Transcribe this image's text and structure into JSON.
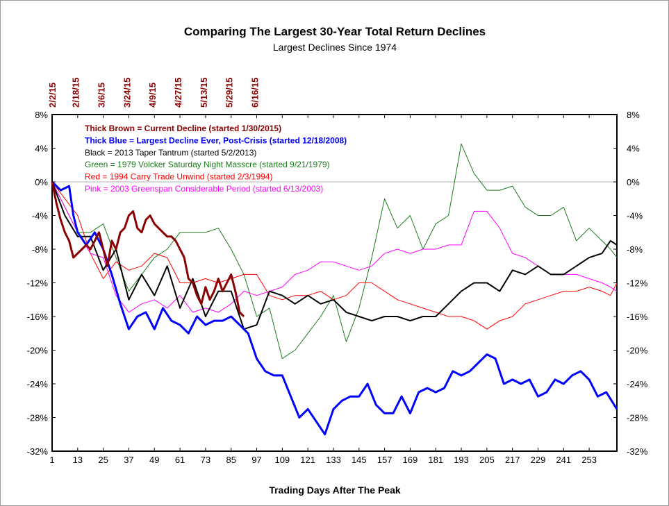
{
  "chart_data": {
    "type": "line",
    "title": "Comparing The Largest 30-Year Total Return Declines",
    "subtitle": "Largest Declines Since 1974",
    "xlabel": "Trading Days After The Peak",
    "xlim": [
      1,
      266
    ],
    "ylim": [
      -32,
      8
    ],
    "x_ticks": [
      1,
      13,
      25,
      37,
      49,
      61,
      73,
      85,
      97,
      109,
      121,
      133,
      145,
      157,
      169,
      181,
      193,
      205,
      217,
      229,
      241,
      253
    ],
    "y_ticks": [
      8,
      4,
      0,
      -4,
      -8,
      -12,
      -16,
      -20,
      -24,
      -28,
      -32
    ],
    "y_tick_labels": [
      "8%",
      "4%",
      "0%",
      "-4%",
      "-8%",
      "-12%",
      "-16%",
      "-20%",
      "-24%",
      "-28%",
      "-32%"
    ],
    "top_date_ticks": [
      {
        "label": "2/2/15",
        "x": 1
      },
      {
        "label": "2/18/15",
        "x": 12
      },
      {
        "label": "3/6/15",
        "x": 24
      },
      {
        "label": "3/24/15",
        "x": 36
      },
      {
        "label": "4/9/15",
        "x": 48
      },
      {
        "label": "4/27/15",
        "x": 60
      },
      {
        "label": "5/13/15",
        "x": 72
      },
      {
        "label": "5/29/15",
        "x": 84
      },
      {
        "label": "6/16/15",
        "x": 96
      }
    ],
    "grid": false,
    "zero_line": true,
    "legend_position": "top-left",
    "series": [
      {
        "name": "Thick Brown = Current Decline (started 1/30/2015)",
        "color": "#8b0000",
        "bold": true,
        "width": 3,
        "x": [
          1,
          3,
          5,
          7,
          9,
          11,
          13,
          15,
          17,
          19,
          21,
          23,
          25,
          27,
          29,
          31,
          33,
          35,
          37,
          39,
          41,
          43,
          45,
          47,
          49,
          51,
          53,
          55,
          57,
          59,
          61,
          63,
          65,
          67,
          69,
          71,
          73,
          75,
          77,
          79,
          81,
          83,
          85,
          87,
          89,
          91
        ],
        "y": [
          0,
          -2.5,
          -4.5,
          -6,
          -7,
          -9,
          -8.5,
          -8,
          -7.5,
          -8,
          -7,
          -6,
          -8,
          -10,
          -7,
          -8,
          -6,
          -5.5,
          -4,
          -3.5,
          -5.5,
          -6,
          -4.5,
          -4,
          -5,
          -5.5,
          -6,
          -6.5,
          -6.5,
          -7,
          -8,
          -9,
          -11.5,
          -12,
          -13.5,
          -14.5,
          -12.5,
          -14,
          -13,
          -11.5,
          -13,
          -12,
          -11,
          -13,
          -15.5,
          -16
        ]
      },
      {
        "name": "Thick Blue = Largest Decline Ever, Post-Crisis (started 12/18/2008)",
        "color": "#0000ff",
        "bold": true,
        "width": 3,
        "x": [
          1,
          5,
          9,
          11,
          13,
          17,
          21,
          25,
          29,
          33,
          37,
          41,
          45,
          49,
          53,
          57,
          61,
          65,
          69,
          73,
          77,
          81,
          85,
          89,
          93,
          97,
          101,
          105,
          109,
          113,
          117,
          121,
          125,
          129,
          133,
          137,
          141,
          145,
          149,
          153,
          157,
          161,
          165,
          169,
          173,
          177,
          181,
          185,
          189,
          193,
          197,
          201,
          205,
          209,
          213,
          217,
          221,
          225,
          229,
          233,
          237,
          241,
          245,
          249,
          253,
          257,
          261,
          266
        ],
        "y": [
          0,
          -1,
          -0.5,
          -4,
          -6,
          -7.5,
          -6,
          -8,
          -11,
          -14.5,
          -17.5,
          -16,
          -15.5,
          -17.5,
          -15,
          -16.5,
          -17,
          -18,
          -16,
          -17,
          -16.5,
          -16.5,
          -16,
          -17,
          -18,
          -21,
          -22.5,
          -23,
          -23,
          -25.5,
          -28,
          -27,
          -28.5,
          -30,
          -27,
          -26,
          -25.5,
          -25.5,
          -24,
          -26.5,
          -27.5,
          -27.5,
          -25.5,
          -27.5,
          -25,
          -24.5,
          -25,
          -24.5,
          -22.5,
          -23,
          -22.5,
          -21.5,
          -20.5,
          -21,
          -24,
          -23.5,
          -24,
          -23.5,
          -25.5,
          -25,
          -23.5,
          -24,
          -23,
          -22.5,
          -23.5,
          -25.5,
          -25,
          -27
        ]
      },
      {
        "name": "Black = 2013 Taper Tantrum (started 5/2/2013)",
        "color": "#000000",
        "bold": false,
        "width": 2,
        "x": [
          1,
          7,
          13,
          19,
          25,
          31,
          37,
          43,
          49,
          55,
          61,
          67,
          73,
          79,
          85,
          91,
          97,
          103,
          109,
          115,
          121,
          127,
          133,
          139,
          145,
          151,
          157,
          163,
          169,
          175,
          181,
          187,
          193,
          199,
          205,
          211,
          217,
          223,
          229,
          235,
          241,
          247,
          253,
          259,
          263,
          266
        ],
        "y": [
          0,
          -4,
          -6.5,
          -6.5,
          -10.5,
          -8,
          -14,
          -11,
          -13.5,
          -10,
          -15,
          -11.5,
          -16,
          -13,
          -13,
          -17.5,
          -17,
          -13,
          -13.5,
          -14.5,
          -13.5,
          -14.5,
          -14,
          -15.5,
          -16,
          -16.5,
          -16,
          -16,
          -16.5,
          -16,
          -16,
          -14.5,
          -13,
          -12,
          -12,
          -13,
          -10.5,
          -11,
          -10,
          -11,
          -11,
          -10,
          -9,
          -8.5,
          -7,
          -7.5
        ]
      },
      {
        "name": "Green = 1979 Volcker Saturday Night Masscre (started 9/21/1979)",
        "color": "#1a7a1a",
        "bold": false,
        "width": 1,
        "x": [
          1,
          7,
          13,
          19,
          25,
          31,
          37,
          43,
          49,
          55,
          61,
          67,
          73,
          79,
          85,
          91,
          97,
          103,
          109,
          115,
          121,
          127,
          133,
          139,
          145,
          151,
          157,
          163,
          169,
          175,
          181,
          187,
          193,
          199,
          205,
          211,
          217,
          223,
          229,
          235,
          241,
          247,
          253,
          259,
          263,
          266
        ],
        "y": [
          0,
          -3,
          -6,
          -6,
          -5,
          -9,
          -13,
          -11,
          -9,
          -8,
          -6,
          -6,
          -6,
          -5.5,
          -8,
          -11,
          -16,
          -15,
          -21,
          -20,
          -18,
          -16,
          -13.5,
          -19,
          -15,
          -9,
          -2,
          -5.5,
          -4,
          -8,
          -5,
          -4,
          4.5,
          1,
          -1,
          -1,
          -0.5,
          -3,
          -4,
          -4,
          -3,
          -7,
          -5.5,
          -7,
          -8,
          -9
        ]
      },
      {
        "name": "Red = 1994 Carry Trade Unwind (started 2/3/1994)",
        "color": "#ff0000",
        "bold": false,
        "width": 1,
        "x": [
          1,
          7,
          13,
          19,
          25,
          31,
          37,
          43,
          49,
          55,
          61,
          67,
          73,
          79,
          85,
          91,
          97,
          103,
          109,
          115,
          121,
          127,
          133,
          139,
          145,
          151,
          157,
          163,
          169,
          175,
          181,
          187,
          193,
          199,
          205,
          211,
          217,
          223,
          229,
          235,
          241,
          247,
          253,
          259,
          263,
          266
        ],
        "y": [
          0,
          -2,
          -4,
          -8.5,
          -11.5,
          -9.5,
          -10.5,
          -10,
          -8.5,
          -9,
          -12,
          -12,
          -11.5,
          -12,
          -11.5,
          -11,
          -11,
          -13.5,
          -14,
          -13.5,
          -13.5,
          -13,
          -14,
          -13.5,
          -12,
          -12,
          -13,
          -14,
          -14.5,
          -15,
          -15.5,
          -16,
          -16,
          -16.5,
          -17.5,
          -16.5,
          -16,
          -14.5,
          -14,
          -13.5,
          -13,
          -13,
          -12.5,
          -13,
          -13.5,
          -12
        ]
      },
      {
        "name": "Pink = 2003 Greenspan Considerable Period (started 6/13/2003)",
        "color": "#ff00ff",
        "bold": false,
        "width": 1,
        "x": [
          1,
          7,
          13,
          19,
          25,
          31,
          37,
          43,
          49,
          55,
          61,
          67,
          73,
          79,
          85,
          91,
          97,
          103,
          109,
          115,
          121,
          127,
          133,
          139,
          145,
          151,
          157,
          163,
          169,
          175,
          181,
          187,
          193,
          199,
          205,
          211,
          217,
          223,
          229,
          235,
          241,
          247,
          253,
          259,
          263,
          266
        ],
        "y": [
          0,
          -3,
          -6,
          -8.5,
          -9,
          -13.5,
          -15.5,
          -14.5,
          -14,
          -15,
          -13.5,
          -15.5,
          -15,
          -15.5,
          -14.5,
          -13,
          -13.5,
          -13,
          -12.5,
          -11,
          -10.5,
          -9.5,
          -9.5,
          -10,
          -10.5,
          -10,
          -8.5,
          -8,
          -8.5,
          -8,
          -8,
          -7.5,
          -7.5,
          -3.5,
          -3.5,
          -5.5,
          -8.5,
          -9,
          -10,
          -11,
          -11,
          -11,
          -11.5,
          -12,
          -12.5,
          -13
        ]
      }
    ]
  }
}
